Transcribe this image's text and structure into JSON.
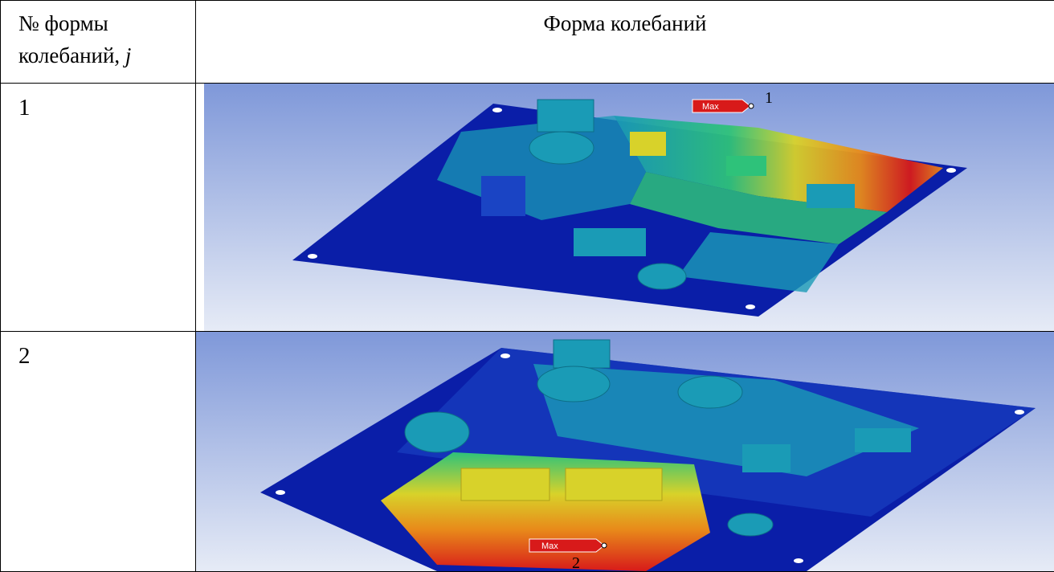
{
  "header": {
    "mode_number_label": "№ формы колебаний,",
    "mode_number_var": "j",
    "mode_shape_label": "Форма колебаний"
  },
  "rows": [
    {
      "mode_number": "1",
      "max_label": "Max",
      "callout": "1"
    },
    {
      "mode_number": "2",
      "max_label": "Max",
      "callout": "2"
    }
  ],
  "colors": {
    "background_top": "#7f98d9",
    "background_bottom": "#e6ebf6",
    "deep_blue": "#0a1ea8",
    "mid_blue": "#1a44c4",
    "cyan": "#1a9bb6",
    "green": "#2ec27a",
    "yellow": "#d8d22a",
    "orange": "#e88a1a",
    "red": "#d81a1a"
  }
}
